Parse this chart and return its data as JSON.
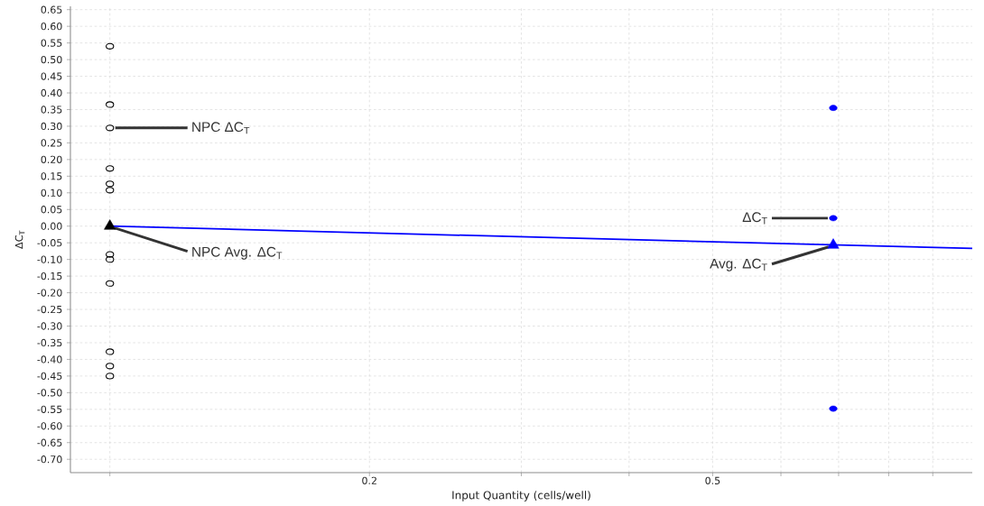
{
  "chart_data": {
    "type": "scatter",
    "xlabel": "Input Quantity (cells/well)",
    "ylabel": "ΔC$_{T}$",
    "log": "x",
    "grid": true,
    "xlim": [
      0.09,
      1.0
    ],
    "ylim": [
      -0.74,
      0.66
    ],
    "xticks": [
      {
        "value": 0.1,
        "label": null
      },
      0.2,
      {
        "value": 0.3,
        "label": null
      },
      {
        "value": 0.4,
        "label": null
      },
      0.5,
      {
        "value": 0.6,
        "label": null
      },
      {
        "value": 0.7,
        "label": null
      },
      {
        "value": 0.8,
        "label": null
      },
      {
        "value": 0.9,
        "label": null
      }
    ],
    "yticks": [
      {
        "value": -0.7,
        "label": "-0.70"
      },
      -0.65,
      {
        "value": -0.6,
        "label": "-0.60"
      },
      -0.55,
      {
        "value": -0.5,
        "label": "-0.50"
      },
      -0.45,
      {
        "value": -0.4,
        "label": "-0.40"
      },
      -0.35,
      {
        "value": -0.3,
        "label": "-0.30"
      },
      -0.25,
      {
        "value": -0.2,
        "label": "-0.20"
      },
      -0.15,
      {
        "value": -0.1,
        "label": "-0.10"
      },
      -0.05,
      {
        "value": 0,
        "label": "0.00"
      },
      0.05,
      {
        "value": 0.1,
        "label": "0.10"
      },
      0.15,
      {
        "value": 0.2,
        "label": "0.20"
      },
      0.25,
      {
        "value": 0.3,
        "label": "0.30"
      },
      0.35,
      {
        "value": 0.4,
        "label": "0.40"
      },
      0.45,
      {
        "value": 0.5,
        "label": "0.50"
      },
      0.55,
      {
        "value": 0.6,
        "label": "0.60"
      },
      0.65
    ],
    "series": [
      {
        "name": "NPC ΔC$_{T}$",
        "type": "scatter",
        "marker": "circle",
        "color": "#000000",
        "x": [
          0.1,
          0.1,
          0.1,
          0.1,
          0.1,
          0.1,
          0.1,
          0.1,
          0.1,
          0.1,
          0.1,
          0.1
        ],
        "values": [
          0.54,
          0.365,
          0.295,
          0.173,
          0.127,
          0.108,
          -0.085,
          -0.1,
          -0.172,
          -0.377,
          -0.42,
          -0.45
        ]
      },
      {
        "name": "NPC Avg. ΔC$_{T}$",
        "type": "scatter",
        "marker": "triangle",
        "color": "#000000",
        "x": [
          0.1
        ],
        "values": [
          0
        ]
      },
      {
        "name": "ΔC$_{T}$",
        "type": "scatter",
        "marker": "circle",
        "color": "#0000ff",
        "x": [
          0.69,
          0.69,
          0.69
        ],
        "values": [
          0.355,
          0.024,
          -0.548
        ]
      },
      {
        "name": "Avg. ΔC$_{T}$",
        "type": "scatter",
        "marker": "triangle",
        "color": "#0000ff",
        "x": [
          0.69
        ],
        "values": [
          -0.057
        ]
      },
      {
        "type": "line",
        "marker": "none",
        "color": "#0000ff",
        "x": [
          0.1,
          1.0
        ],
        "values": [
          0,
          -0.067
        ]
      }
    ]
  }
}
